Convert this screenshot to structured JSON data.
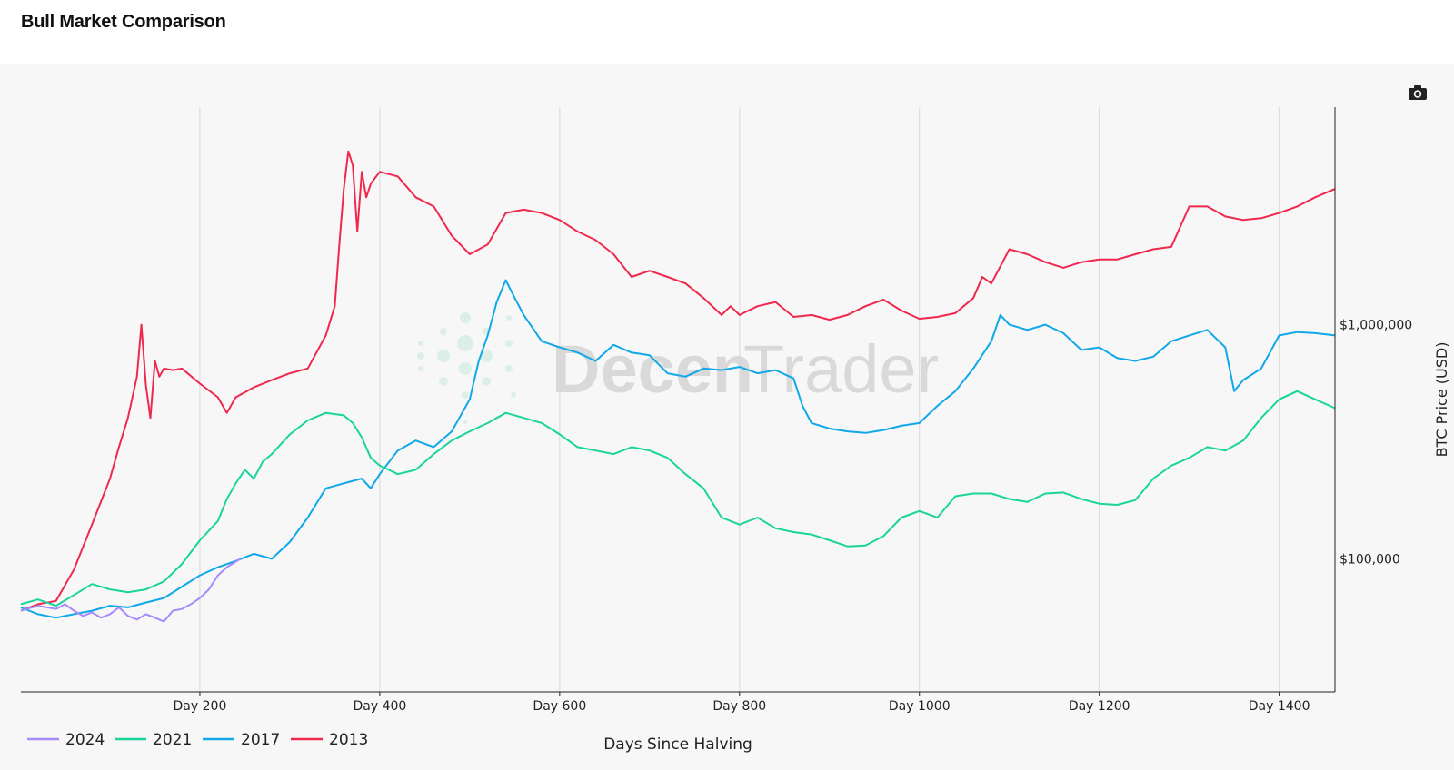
{
  "page": {
    "title": "Bull Market Comparison"
  },
  "watermark": {
    "part1": "Decen",
    "part2": "Trader"
  },
  "icons": {
    "camera": "camera-icon"
  },
  "colors": {
    "2024": "#a78bfa",
    "2021": "#19d49b",
    "2017": "#10a8e8",
    "2013": "#f0284e",
    "plot_bg": "#f7f7f7",
    "grid": "#d9d9d9"
  },
  "chart_data": {
    "type": "line",
    "title": "",
    "xlabel": "Days Since Halving",
    "ylabel": "BTC Price (USD)",
    "y_scale": "log",
    "xlim": [
      1,
      1462
    ],
    "ylim": [
      27000,
      8500000
    ],
    "x_ticks": [
      200,
      400,
      600,
      800,
      1000,
      1200,
      1400
    ],
    "x_tick_labels": [
      "Day 200",
      "Day 400",
      "Day 600",
      "Day 800",
      "Day 1000",
      "Day 1200",
      "Day 1400"
    ],
    "y_ticks": [
      100000,
      1000000
    ],
    "y_tick_labels": [
      "$100,000",
      "$1,000,000"
    ],
    "y_axis_side": "right",
    "grid": "vertical",
    "legend": "bottom-left",
    "series": [
      {
        "name": "2024",
        "x": [
          1,
          20,
          40,
          50,
          60,
          70,
          80,
          90,
          100,
          110,
          120,
          130,
          140,
          150,
          160,
          170,
          180,
          190,
          200,
          210,
          220,
          230,
          245
        ],
        "y": [
          60000,
          63000,
          61000,
          64000,
          60000,
          57000,
          59000,
          56000,
          58000,
          62000,
          57000,
          55000,
          58000,
          56000,
          54000,
          60000,
          61000,
          64000,
          68000,
          74000,
          85000,
          92000,
          100000
        ]
      },
      {
        "name": "2021",
        "x": [
          1,
          20,
          40,
          60,
          80,
          100,
          120,
          140,
          160,
          180,
          200,
          220,
          230,
          240,
          250,
          260,
          270,
          280,
          300,
          320,
          340,
          360,
          370,
          380,
          390,
          400,
          410,
          420,
          440,
          460,
          480,
          500,
          520,
          540,
          560,
          580,
          600,
          620,
          640,
          660,
          680,
          700,
          720,
          740,
          760,
          780,
          800,
          820,
          840,
          860,
          880,
          900,
          920,
          940,
          960,
          980,
          1000,
          1020,
          1040,
          1060,
          1080,
          1100,
          1120,
          1140,
          1160,
          1180,
          1200,
          1220,
          1240,
          1260,
          1280,
          1300,
          1320,
          1340,
          1360,
          1380,
          1400,
          1420,
          1440,
          1462
        ],
        "y": [
          64000,
          67000,
          63000,
          70000,
          78000,
          74000,
          72000,
          74000,
          80000,
          95000,
          120000,
          145000,
          180000,
          210000,
          240000,
          220000,
          260000,
          280000,
          340000,
          390000,
          420000,
          410000,
          380000,
          330000,
          270000,
          250000,
          240000,
          230000,
          240000,
          280000,
          320000,
          350000,
          380000,
          420000,
          400000,
          380000,
          340000,
          300000,
          290000,
          280000,
          300000,
          290000,
          270000,
          230000,
          200000,
          150000,
          140000,
          150000,
          135000,
          130000,
          127000,
          120000,
          113000,
          114000,
          125000,
          150000,
          160000,
          150000,
          185000,
          190000,
          190000,
          180000,
          175000,
          190000,
          192000,
          180000,
          172000,
          170000,
          178000,
          220000,
          250000,
          270000,
          300000,
          290000,
          320000,
          400000,
          480000,
          520000,
          480000,
          440000
        ]
      },
      {
        "name": "2017",
        "x": [
          1,
          20,
          40,
          60,
          80,
          100,
          120,
          140,
          160,
          180,
          200,
          220,
          240,
          260,
          280,
          300,
          320,
          340,
          360,
          380,
          390,
          400,
          420,
          440,
          460,
          480,
          500,
          510,
          520,
          530,
          540,
          550,
          560,
          580,
          600,
          620,
          640,
          660,
          680,
          700,
          720,
          740,
          760,
          780,
          800,
          820,
          840,
          860,
          870,
          880,
          900,
          920,
          940,
          960,
          980,
          1000,
          1020,
          1040,
          1060,
          1080,
          1090,
          1100,
          1120,
          1140,
          1160,
          1180,
          1200,
          1220,
          1240,
          1260,
          1280,
          1300,
          1320,
          1340,
          1350,
          1360,
          1380,
          1400,
          1420,
          1440,
          1462
        ],
        "y": [
          62000,
          58000,
          56000,
          58000,
          60000,
          63000,
          62000,
          65000,
          68000,
          76000,
          85000,
          92000,
          98000,
          105000,
          100000,
          118000,
          150000,
          200000,
          210000,
          220000,
          200000,
          230000,
          290000,
          320000,
          300000,
          350000,
          480000,
          700000,
          900000,
          1250000,
          1550000,
          1300000,
          1100000,
          850000,
          800000,
          760000,
          700000,
          820000,
          760000,
          740000,
          620000,
          600000,
          650000,
          640000,
          660000,
          620000,
          640000,
          590000,
          450000,
          380000,
          360000,
          350000,
          345000,
          355000,
          370000,
          380000,
          450000,
          520000,
          650000,
          850000,
          1100000,
          1000000,
          950000,
          1000000,
          920000,
          780000,
          800000,
          720000,
          700000,
          730000,
          850000,
          900000,
          950000,
          800000,
          520000,
          580000,
          650000,
          900000,
          930000,
          920000,
          900000
        ]
      },
      {
        "name": "2013",
        "x": [
          1,
          20,
          40,
          60,
          80,
          100,
          110,
          120,
          130,
          135,
          140,
          145,
          150,
          155,
          160,
          170,
          180,
          200,
          220,
          230,
          240,
          260,
          280,
          300,
          320,
          340,
          350,
          355,
          360,
          365,
          370,
          375,
          380,
          385,
          390,
          400,
          420,
          440,
          460,
          480,
          500,
          520,
          540,
          560,
          580,
          600,
          620,
          640,
          660,
          680,
          700,
          720,
          740,
          760,
          780,
          790,
          800,
          820,
          840,
          860,
          880,
          900,
          920,
          940,
          960,
          980,
          1000,
          1020,
          1040,
          1060,
          1070,
          1080,
          1100,
          1120,
          1140,
          1160,
          1180,
          1200,
          1220,
          1240,
          1260,
          1280,
          1300,
          1320,
          1340,
          1360,
          1380,
          1400,
          1420,
          1440,
          1462
        ],
        "y": [
          60000,
          64000,
          66000,
          90000,
          140000,
          220000,
          300000,
          400000,
          600000,
          1000000,
          550000,
          400000,
          700000,
          600000,
          650000,
          640000,
          650000,
          560000,
          490000,
          420000,
          490000,
          540000,
          580000,
          620000,
          650000,
          900000,
          1200000,
          2200000,
          3800000,
          5500000,
          4800000,
          2500000,
          4500000,
          3500000,
          4000000,
          4500000,
          4300000,
          3500000,
          3200000,
          2400000,
          2000000,
          2200000,
          3000000,
          3100000,
          3000000,
          2800000,
          2500000,
          2300000,
          2000000,
          1600000,
          1700000,
          1600000,
          1500000,
          1300000,
          1100000,
          1200000,
          1100000,
          1200000,
          1250000,
          1080000,
          1100000,
          1050000,
          1100000,
          1200000,
          1280000,
          1150000,
          1060000,
          1080000,
          1120000,
          1300000,
          1600000,
          1500000,
          2100000,
          2000000,
          1850000,
          1750000,
          1850000,
          1900000,
          1900000,
          2000000,
          2100000,
          2150000,
          3200000,
          3200000,
          2900000,
          2800000,
          2850000,
          3000000,
          3200000,
          3500000,
          3800000
        ]
      }
    ]
  }
}
